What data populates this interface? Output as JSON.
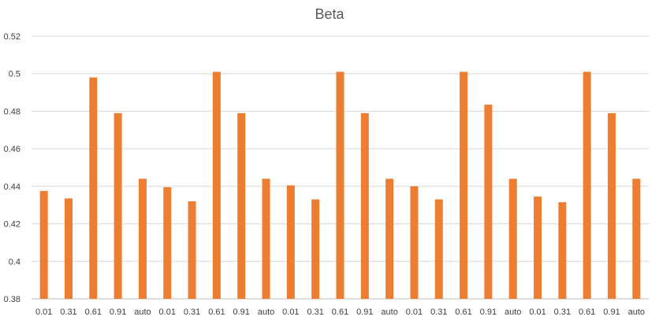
{
  "chart_data": {
    "type": "bar",
    "title": "Beta",
    "xlabel": "",
    "ylabel": "",
    "categories": [
      "0.01",
      "0.31",
      "0.61",
      "0.91",
      "auto",
      "0.01",
      "0.31",
      "0.61",
      "0.91",
      "auto",
      "0.01",
      "0.31",
      "0.61",
      "0.91",
      "auto",
      "0.01",
      "0.31",
      "0.61",
      "0.91",
      "auto",
      "0.01",
      "0.31",
      "0.61",
      "0.91",
      "auto"
    ],
    "series": [
      {
        "values": [
          0.4375,
          0.4335,
          0.498,
          0.479,
          0.444,
          0.4395,
          0.432,
          0.501,
          0.479,
          0.444,
          0.4405,
          0.433,
          0.501,
          0.479,
          0.444,
          0.44,
          0.433,
          0.501,
          0.4835,
          0.444,
          0.4345,
          0.4315,
          0.501,
          0.479,
          0.444
        ],
        "color": "#ED7D31"
      }
    ],
    "ylim": [
      0.38,
      0.52
    ],
    "yticks": [
      "0.38",
      "0.4",
      "0.42",
      "0.44",
      "0.46",
      "0.48",
      "0.5",
      "0.52"
    ],
    "grid": true,
    "legend": "none"
  }
}
